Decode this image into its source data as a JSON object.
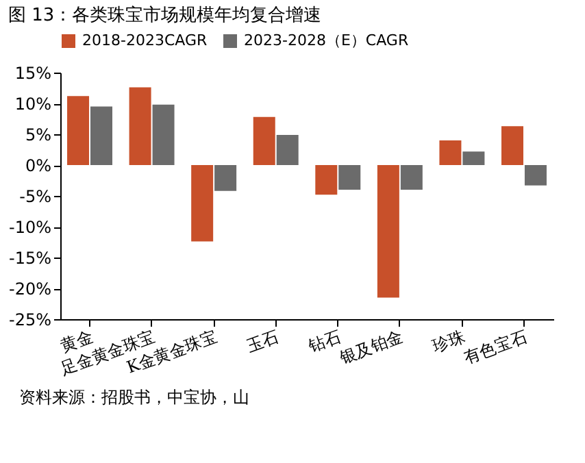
{
  "chart_data": {
    "type": "bar",
    "title": "图 13：各类珠宝市场规模年均复合增速",
    "categories": [
      "黄金",
      "足金黄金珠宝",
      "K金黄金珠宝",
      "玉石",
      "钻石",
      "银及铂金",
      "珍珠",
      "有色宝石"
    ],
    "series": [
      {
        "name": "2018-2023CAGR",
        "color": "#c8502a",
        "values": [
          11.2,
          12.6,
          -12.4,
          7.8,
          -4.8,
          -21.5,
          4.0,
          6.3
        ]
      },
      {
        "name": "2023-2028（E）CAGR",
        "color": "#6b6b6b",
        "values": [
          9.5,
          9.8,
          -4.2,
          4.9,
          -4.0,
          -4.0,
          2.2,
          -3.3
        ]
      }
    ],
    "ylim": [
      -25,
      15
    ],
    "yticks": [
      {
        "value": 15,
        "label": "15%"
      },
      {
        "value": 10,
        "label": "10%"
      },
      {
        "value": 5,
        "label": "5%"
      },
      {
        "value": 0,
        "label": "0%"
      },
      {
        "value": -5,
        "label": "-5%"
      },
      {
        "value": -10,
        "label": "-10%"
      },
      {
        "value": -15,
        "label": "-15%"
      },
      {
        "value": -20,
        "label": "-20%"
      },
      {
        "value": -25,
        "label": "-25%"
      }
    ],
    "grid": false,
    "legend": "top",
    "annotations": [
      "资料来源：招股书，中宝协，山"
    ]
  }
}
